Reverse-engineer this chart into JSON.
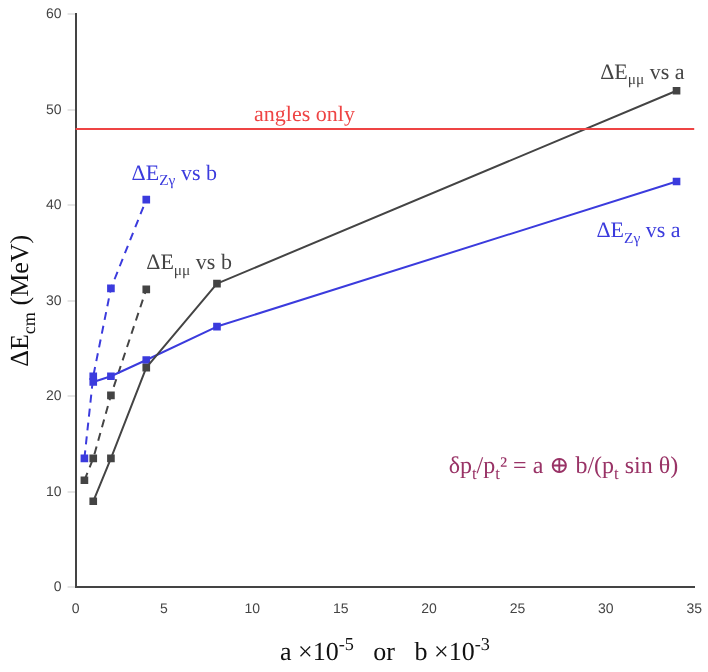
{
  "chart_data": {
    "type": "line",
    "xlabel": "a ×10$^{-5}$   or   b ×10$^{-3}$",
    "ylabel": "ΔE$_{cm}$ (MeV)",
    "xlim": [
      0,
      35
    ],
    "xticks": [
      0,
      5,
      10,
      15,
      20,
      25,
      30,
      35
    ],
    "ylim": [
      0,
      60
    ],
    "yticks": [
      0,
      10,
      20,
      30,
      40,
      50,
      60
    ],
    "grid": false,
    "legend": false,
    "marker": "square",
    "series": [
      {
        "name": "ΔE$_{μμ}$ vs a",
        "color": "#444444",
        "line_style": "solid",
        "x": [
          1,
          2,
          4,
          8,
          34
        ],
        "values": [
          9,
          13.5,
          23,
          31.8,
          52
        ]
      },
      {
        "name": "ΔE$_{Zγ}$ vs a",
        "color": "#3b3bdd",
        "line_style": "solid",
        "x": [
          1,
          2,
          4,
          8,
          34
        ],
        "values": [
          21.5,
          22.1,
          23.8,
          27.3,
          42.5
        ]
      },
      {
        "name": "ΔE$_{Zγ}$ vs b",
        "color": "#3b3bdd",
        "line_style": "dashed",
        "x": [
          0.5,
          1,
          2,
          4
        ],
        "values": [
          13.5,
          22.1,
          31.3,
          40.6
        ]
      },
      {
        "name": "ΔE$_{μμ}$ vs b",
        "color": "#444444",
        "line_style": "dashed",
        "x": [
          0.5,
          1,
          2,
          4
        ],
        "values": [
          11.2,
          13.5,
          20.1,
          31.2
        ]
      }
    ],
    "ref_lines": [
      {
        "axis": "y",
        "value": 48,
        "label": "angles only",
        "color": "#ee4444"
      }
    ],
    "annotations": [
      "δp$_{t}$/p$_{t}$² = a ⊕ b/(p$_{t}$ sin θ)"
    ]
  }
}
